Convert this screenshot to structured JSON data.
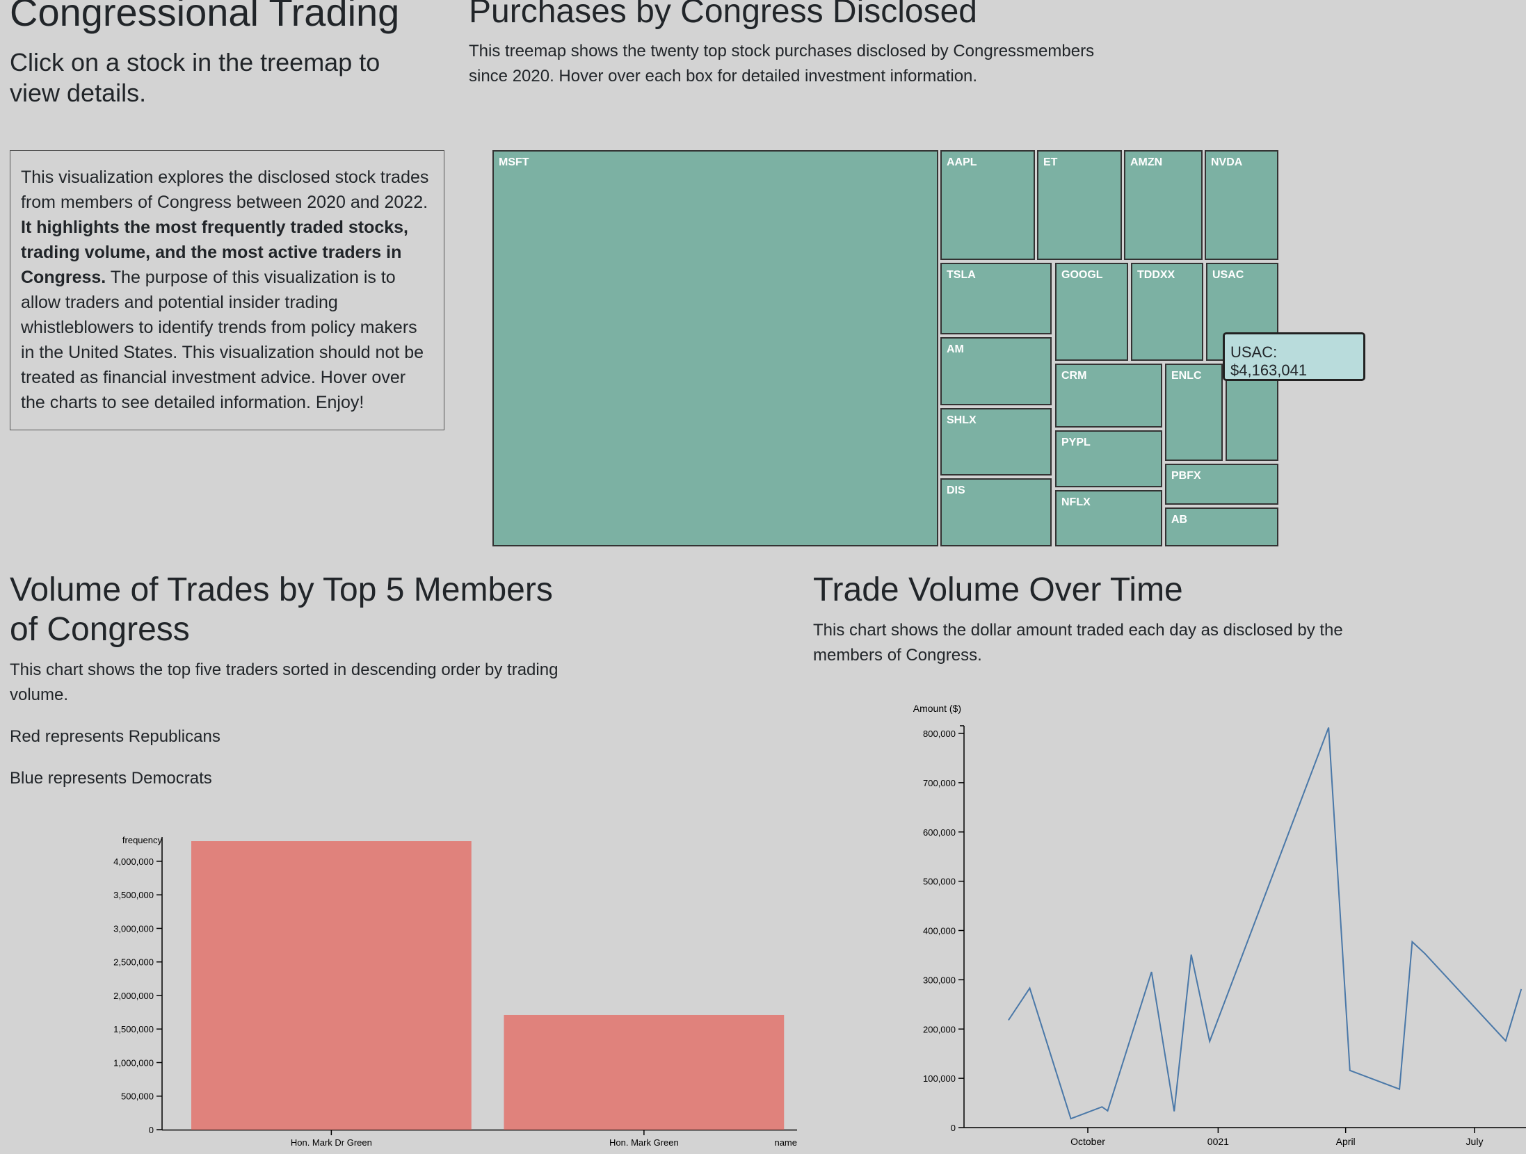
{
  "header": {
    "title": "Congressional Trading",
    "subtitle": "Click on a stock in the treemap to view details."
  },
  "intro": {
    "text_before": "This visualization explores the disclosed stock trades from members of Congress between 2020 and 2022.",
    "text_bold": "It highlights the most frequently traded stocks, trading volume, and the most active traders in Congress.",
    "text_after": "The purpose of this visualization is to allow traders and potential insider trading whistleblowers to identify trends from policy makers in the United States. This visualization should not be treated as financial investment advice. Hover over the charts to see detailed information. Enjoy!"
  },
  "treemap": {
    "title": "Purchases by Congress Disclosed",
    "description": "This treemap shows the twenty top stock purchases disclosed by Congressmembers since 2020. Hover over each box for detailed investment information.",
    "fill_color": "#7cb1a3",
    "cells": [
      "MSFT",
      "AAPL",
      "ET",
      "AMZN",
      "NVDA",
      "TSLA",
      "GOOGL",
      "TDDXX",
      "USAC",
      "AM",
      "CRM",
      "ENLC",
      "",
      "SHLX",
      "PYPL",
      "PBFX",
      "DIS",
      "NFLX",
      "AB"
    ],
    "tooltip": "USAC: $4,163,041"
  },
  "bar_section": {
    "title": "Volume of Trades by Top 5 Members of Congress",
    "description": "This chart shows the top five traders sorted in descending order by trading volume.",
    "legend_red": "Red represents Republicans",
    "legend_blue": "Blue represents Democrats"
  },
  "line_section": {
    "title": "Trade Volume Over Time",
    "description": "This chart shows the dollar amount traded each day as disclosed by the members of Congress."
  },
  "colors": {
    "republican": "#e0827c",
    "line": "#4a78a8"
  },
  "chart_data": [
    {
      "type": "bar",
      "title": "",
      "xlabel": "name",
      "ylabel": "frequency",
      "categories": [
        "Hon. Mark Dr Green",
        "Hon. Mark Green"
      ],
      "values": [
        4300000,
        1710000
      ],
      "ylim": [
        0,
        4300000
      ],
      "yticks": [
        0,
        500000,
        1000000,
        1500000,
        2000000,
        2500000,
        3000000,
        3500000,
        4000000
      ],
      "ytick_labels": [
        "0",
        "500,000",
        "1,000,000",
        "1,500,000",
        "2,000,000",
        "2,500,000",
        "3,000,000",
        "3,500,000",
        "4,000,000"
      ],
      "bar_color": "#e0827c",
      "party": [
        "Republican",
        "Republican"
      ]
    },
    {
      "type": "line",
      "title": "",
      "ylabel": "Amount ($)",
      "x": [
        "2020-08-06",
        "2020-08-21",
        "2020-09-19",
        "2020-10-11",
        "2020-10-15",
        "2020-11-15",
        "2020-12-01",
        "2020-12-13",
        "2020-12-26",
        "2021-03-20",
        "2021-04-04",
        "2021-05-09",
        "2021-05-18",
        "2021-05-27",
        "2021-07-23",
        "2021-08-03"
      ],
      "values": [
        218000,
        283000,
        18000,
        42000,
        34000,
        316000,
        33000,
        351000,
        175000,
        812000,
        116000,
        78000,
        377000,
        353000,
        176000,
        281000
      ],
      "xticks": [
        "2020-10-01",
        "2021-01-01",
        "2021-04-01",
        "2021-07-01"
      ],
      "xtick_labels": [
        "October",
        "0021",
        "April",
        "July"
      ],
      "ylim": [
        0,
        820000
      ],
      "yticks": [
        0,
        100000,
        200000,
        300000,
        400000,
        500000,
        600000,
        700000,
        800000
      ],
      "ytick_labels": [
        "0",
        "100,000",
        "200,000",
        "300,000",
        "400,000",
        "500,000",
        "600,000",
        "700,000",
        "800,000"
      ],
      "line_color": "#4a78a8"
    }
  ]
}
